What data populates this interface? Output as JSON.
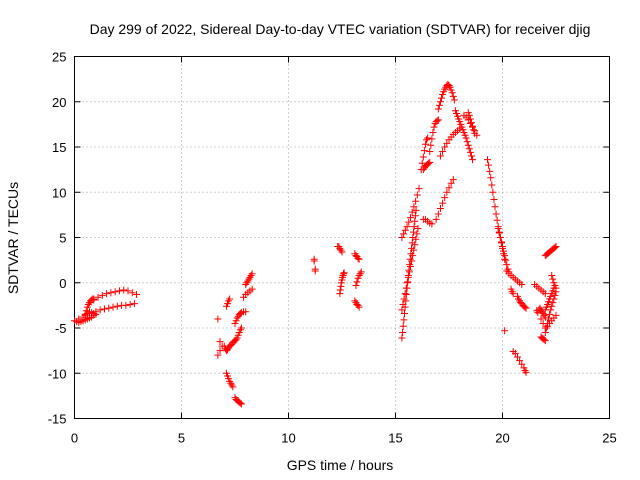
{
  "chart_data": {
    "type": "scatter",
    "title": "Day 299 of 2022, Sidereal Day-to-day VTEC variation (SDTVAR) for receiver djig",
    "xlabel": "GPS time / hours",
    "ylabel": "SDTVAR / TECUs",
    "xlim": [
      0,
      25
    ],
    "ylim": [
      -15,
      25
    ],
    "xticks": [
      0,
      5,
      10,
      15,
      20,
      25
    ],
    "yticks": [
      -15,
      -10,
      -5,
      0,
      5,
      10,
      15,
      20,
      25
    ],
    "xtick_labels": [
      "0",
      "5",
      "10",
      "15",
      "20",
      "25"
    ],
    "ytick_labels": [
      "-15",
      "-10",
      "-5",
      "0",
      "5",
      "10",
      "15",
      "20",
      "25"
    ],
    "grid": true,
    "marker": "plus",
    "color": "#ff0000",
    "segments": [
      {
        "x": [
          0.0,
          0.2,
          0.4,
          0.5,
          0.6,
          0.7,
          0.8,
          0.9
        ],
        "y": [
          -4.2,
          -4.0,
          -3.8,
          -3.6,
          -3.4,
          -3.2,
          -3.3,
          -3.4
        ]
      },
      {
        "x": [
          0.1,
          0.2,
          0.3,
          0.4,
          0.5,
          0.6,
          0.7,
          0.8,
          0.9,
          1.0
        ],
        "y": [
          -4.3,
          -4.4,
          -4.3,
          -4.2,
          -4.1,
          -4.0,
          -3.9,
          -3.8,
          -3.6,
          -3.5
        ]
      },
      {
        "x": [
          0.5,
          0.55,
          0.6,
          0.65,
          0.7,
          0.75,
          0.8,
          0.85,
          0.9
        ],
        "y": [
          -3.5,
          -3.1,
          -2.7,
          -2.4,
          -2.2,
          -2.0,
          -1.9,
          -1.8,
          -1.8
        ]
      },
      {
        "x": [
          1.0,
          1.2,
          1.4,
          1.6,
          1.8,
          2.0,
          2.2,
          2.4,
          2.6,
          2.8
        ],
        "y": [
          -3.2,
          -3.0,
          -2.9,
          -2.8,
          -2.7,
          -2.6,
          -2.5,
          -2.5,
          -2.4,
          -2.3
        ]
      },
      {
        "x": [
          0.9,
          1.1,
          1.3,
          1.5,
          1.7,
          1.9,
          2.1,
          2.3,
          2.5,
          2.7,
          2.9
        ],
        "y": [
          -1.9,
          -1.6,
          -1.4,
          -1.2,
          -1.1,
          -1.0,
          -0.9,
          -0.8,
          -0.9,
          -1.1,
          -1.3
        ]
      },
      {
        "x": [
          6.7,
          6.8
        ],
        "y": [
          -4.0,
          -6.5
        ]
      },
      {
        "x": [
          6.7,
          6.8,
          6.9
        ],
        "y": [
          -8.0,
          -7.5,
          -7.0
        ]
      },
      {
        "x": [
          7.0,
          7.05,
          7.1,
          7.15,
          7.2,
          7.25,
          7.3,
          7.35,
          7.4,
          7.45,
          7.5,
          7.55,
          7.6,
          7.65,
          7.7,
          7.75,
          7.8
        ],
        "y": [
          -7.0,
          -7.3,
          -7.5,
          -7.4,
          -7.2,
          -7.0,
          -6.9,
          -6.8,
          -6.6,
          -6.5,
          -6.4,
          -6.3,
          -6.1,
          -5.8,
          -5.5,
          -5.2,
          -5.0
        ]
      },
      {
        "x": [
          7.1,
          7.15,
          7.2,
          7.25,
          7.3,
          7.35,
          7.4
        ],
        "y": [
          -10.0,
          -10.3,
          -10.6,
          -10.9,
          -11.1,
          -11.3,
          -11.5
        ]
      },
      {
        "x": [
          7.5,
          7.55,
          7.6,
          7.65,
          7.7,
          7.75,
          7.8
        ],
        "y": [
          -12.7,
          -12.9,
          -13.0,
          -13.1,
          -13.2,
          -13.3,
          -13.4
        ]
      },
      {
        "x": [
          7.1,
          7.15,
          7.2,
          7.25
        ],
        "y": [
          -2.6,
          -2.3,
          -2.0,
          -1.8
        ]
      },
      {
        "x": [
          7.5,
          7.55,
          7.6,
          7.65,
          7.7,
          7.75,
          7.8,
          7.9,
          8.0
        ],
        "y": [
          -4.5,
          -4.2,
          -3.9,
          -3.7,
          -3.5,
          -3.4,
          -3.3,
          -3.2,
          -3.2
        ]
      },
      {
        "x": [
          7.9,
          8.0,
          8.1,
          8.2,
          8.3
        ],
        "y": [
          -1.6,
          -1.3,
          -1.1,
          -0.9,
          -0.7
        ]
      },
      {
        "x": [
          8.0,
          8.05,
          8.1,
          8.15,
          8.2,
          8.25,
          8.3
        ],
        "y": [
          -0.2,
          0.0,
          0.2,
          0.4,
          0.6,
          0.8,
          1.0
        ]
      },
      {
        "x": [
          11.2,
          11.2,
          11.25,
          11.25
        ],
        "y": [
          2.4,
          2.6,
          1.3,
          1.5
        ]
      },
      {
        "x": [
          12.3,
          12.35,
          12.4,
          12.45,
          12.5
        ],
        "y": [
          4.0,
          4.0,
          3.8,
          3.6,
          3.4
        ]
      },
      {
        "x": [
          12.4,
          12.42,
          12.45,
          12.47,
          12.5,
          12.52,
          12.55,
          12.57,
          12.6
        ],
        "y": [
          -1.2,
          -0.8,
          -0.4,
          0.0,
          0.3,
          0.6,
          0.8,
          1.0,
          1.1
        ]
      },
      {
        "x": [
          13.1,
          13.15,
          13.2,
          13.25,
          13.3
        ],
        "y": [
          3.2,
          3.0,
          2.9,
          2.7,
          2.6
        ]
      },
      {
        "x": [
          13.15,
          13.2,
          13.25,
          13.3,
          13.35,
          13.4
        ],
        "y": [
          -0.3,
          0.1,
          0.5,
          0.8,
          1.0,
          1.2
        ]
      },
      {
        "x": [
          13.1,
          13.15,
          13.2,
          13.25,
          13.3
        ],
        "y": [
          -2.0,
          -2.2,
          -2.4,
          -2.5,
          -2.7
        ]
      },
      {
        "x": [
          15.3,
          15.33,
          15.36,
          15.39,
          15.42,
          15.45,
          15.48,
          15.51,
          15.54,
          15.57,
          15.6,
          15.63,
          15.66,
          15.69,
          15.72,
          15.75,
          15.78,
          15.81,
          15.84,
          15.87,
          15.9,
          15.93,
          15.96
        ],
        "y": [
          -6.1,
          -5.5,
          -4.8,
          -4.1,
          -3.4,
          -2.7,
          -2.0,
          -1.3,
          -0.6,
          0.1,
          0.8,
          1.4,
          2.0,
          2.6,
          3.2,
          3.8,
          4.4,
          5.0,
          5.6,
          6.2,
          6.8,
          7.4,
          8.0
        ]
      },
      {
        "x": [
          15.3,
          15.35,
          15.4,
          15.45,
          15.5,
          15.55,
          15.6,
          15.65,
          15.7,
          15.75,
          15.8,
          15.85,
          15.9,
          15.95,
          16.0,
          16.05
        ],
        "y": [
          -3.0,
          -2.4,
          -1.8,
          -1.2,
          -0.6,
          0.0,
          0.6,
          1.2,
          1.8,
          2.4,
          3.0,
          3.6,
          4.2,
          4.8,
          5.4,
          6.0
        ]
      },
      {
        "x": [
          15.3,
          15.38,
          15.46,
          15.54,
          15.62,
          15.7,
          15.78,
          15.86,
          15.94,
          16.02,
          16.1
        ],
        "y": [
          5.0,
          5.4,
          5.8,
          6.2,
          6.7,
          7.2,
          7.8,
          8.4,
          9.0,
          9.7,
          10.4
        ]
      },
      {
        "x": [
          16.2,
          16.25,
          16.3,
          16.35,
          16.4,
          16.45,
          16.5
        ],
        "y": [
          12.5,
          13.2,
          13.9,
          14.6,
          15.3,
          15.8,
          16.0
        ]
      },
      {
        "x": [
          16.3,
          16.35,
          16.4,
          16.45,
          16.5,
          16.55,
          16.6
        ],
        "y": [
          12.5,
          12.7,
          12.9,
          13.0,
          13.1,
          13.2,
          13.3
        ]
      },
      {
        "x": [
          16.6,
          16.65,
          16.7,
          16.75,
          16.8,
          16.85,
          16.9,
          16.95,
          17.0
        ],
        "y": [
          14.5,
          15.2,
          15.9,
          16.6,
          17.2,
          17.6,
          17.8,
          17.9,
          18.0
        ]
      },
      {
        "x": [
          16.3,
          16.4,
          16.5,
          16.6,
          16.7
        ],
        "y": [
          7.0,
          7.0,
          6.8,
          6.6,
          6.5
        ]
      },
      {
        "x": [
          16.9,
          17.0,
          17.1,
          17.2,
          17.3,
          17.4,
          17.5,
          17.6,
          17.7
        ],
        "y": [
          7.0,
          7.6,
          8.2,
          8.8,
          9.4,
          10.0,
          10.5,
          11.0,
          11.4
        ]
      },
      {
        "x": [
          17.0,
          17.05,
          17.1,
          17.15,
          17.2,
          17.25,
          17.3,
          17.35,
          17.4,
          17.45,
          17.5,
          17.55,
          17.6,
          17.65,
          17.7,
          17.75
        ],
        "y": [
          19.2,
          19.6,
          20.0,
          20.4,
          20.8,
          21.1,
          21.4,
          21.6,
          21.8,
          21.9,
          21.8,
          21.6,
          21.3,
          21.0,
          20.6,
          20.2
        ]
      },
      {
        "x": [
          17.1,
          17.2,
          17.3,
          17.4,
          17.5,
          17.6,
          17.7,
          17.8,
          17.9,
          18.0
        ],
        "y": [
          14.0,
          14.5,
          15.0,
          15.4,
          15.8,
          16.1,
          16.4,
          16.6,
          16.8,
          17.0
        ]
      },
      {
        "x": [
          17.8,
          17.85,
          17.9,
          17.95,
          18.0,
          18.05,
          18.1,
          18.15,
          18.2,
          18.25,
          18.3,
          18.35,
          18.4,
          18.45,
          18.5,
          18.55,
          18.6
        ],
        "y": [
          19.0,
          18.7,
          18.4,
          18.1,
          17.8,
          17.5,
          17.2,
          16.9,
          16.6,
          16.3,
          16.0,
          15.6,
          15.2,
          14.8,
          14.4,
          14.0,
          13.6
        ]
      },
      {
        "x": [
          18.2,
          18.3,
          18.4,
          18.5,
          18.6,
          18.7,
          18.8
        ],
        "y": [
          18.5,
          18.3,
          18.0,
          17.6,
          17.2,
          16.8,
          16.3
        ]
      },
      {
        "x": [
          18.4,
          18.45,
          18.5,
          18.55,
          18.6,
          18.65,
          18.7
        ],
        "y": [
          18.8,
          18.5,
          18.1,
          17.7,
          17.3,
          16.9,
          16.5
        ]
      },
      {
        "x": [
          19.3,
          19.35,
          19.4,
          19.45,
          19.5,
          19.55,
          19.6,
          19.65,
          19.7,
          19.75,
          19.8,
          19.85,
          19.9,
          19.95,
          20.0,
          20.05,
          20.1
        ],
        "y": [
          13.6,
          13.0,
          12.3,
          11.6,
          10.8,
          10.0,
          9.2,
          8.4,
          7.6,
          6.9,
          6.2,
          5.6,
          5.0,
          4.4,
          3.8,
          3.2,
          2.6
        ]
      },
      {
        "x": [
          19.8,
          19.85,
          19.9,
          19.95,
          20.0,
          20.05,
          20.1,
          20.15,
          20.2,
          20.25,
          20.3
        ],
        "y": [
          6.0,
          5.5,
          5.0,
          4.5,
          4.0,
          3.5,
          3.0,
          2.5,
          2.0,
          1.5,
          1.2
        ]
      },
      {
        "x": [
          20.2,
          20.3,
          20.4,
          20.5,
          20.6,
          20.7,
          20.8,
          20.9
        ],
        "y": [
          1.3,
          1.0,
          0.8,
          0.6,
          0.4,
          0.2,
          0.0,
          -0.2
        ]
      },
      {
        "x": [
          20.4,
          20.45,
          20.5
        ],
        "y": [
          -0.7,
          -1.0,
          -1.2
        ]
      },
      {
        "x": [
          20.7,
          20.75,
          20.8,
          20.85,
          20.9,
          20.95,
          21.0,
          21.05,
          21.1
        ],
        "y": [
          -1.5,
          -1.8,
          -2.0,
          -2.2,
          -2.3,
          -2.5,
          -2.6,
          -2.7,
          -2.8
        ]
      },
      {
        "x": [
          20.1
        ],
        "y": [
          -5.3
        ]
      },
      {
        "x": [
          20.5,
          20.6,
          20.7,
          20.8,
          20.9,
          21.0,
          21.05,
          21.1
        ],
        "y": [
          -7.6,
          -7.8,
          -8.2,
          -8.6,
          -9.0,
          -9.4,
          -9.7,
          -9.9
        ]
      },
      {
        "x": [
          21.5,
          21.6,
          21.7,
          21.8,
          21.9,
          22.0
        ],
        "y": [
          -0.2,
          -0.4,
          -0.6,
          -0.8,
          -1.0,
          -1.2
        ]
      },
      {
        "x": [
          21.6,
          21.65,
          21.7,
          21.75,
          21.8,
          21.85,
          21.9,
          21.95,
          22.0
        ],
        "y": [
          -3.1,
          -3.3,
          -3.0,
          -2.8,
          -3.0,
          -3.2,
          -3.4,
          -3.6,
          -3.8
        ]
      },
      {
        "x": [
          21.8,
          21.85,
          21.9,
          21.95,
          22.0
        ],
        "y": [
          -6.0,
          -6.1,
          -6.2,
          -6.3,
          -6.4
        ]
      },
      {
        "x": [
          21.8,
          21.9,
          22.0,
          22.1,
          22.2,
          22.3,
          22.4,
          22.5
        ],
        "y": [
          -4.0,
          -4.5,
          -5.0,
          -4.8,
          -4.5,
          -4.2,
          -3.9,
          -3.6
        ]
      },
      {
        "x": [
          22.0,
          22.05,
          22.1,
          22.15,
          22.2,
          22.25,
          22.3,
          22.35,
          22.4,
          22.45,
          22.5
        ],
        "y": [
          -5.5,
          -5.0,
          -4.5,
          -4.0,
          -3.5,
          -3.0,
          -2.6,
          -2.2,
          -1.8,
          -1.4,
          -1.0
        ]
      },
      {
        "x": [
          22.0,
          22.05,
          22.1,
          22.15,
          22.2,
          22.25,
          22.3,
          22.35,
          22.4
        ],
        "y": [
          -3.0,
          -2.7,
          -2.4,
          -2.1,
          -1.8,
          -1.5,
          -1.2,
          -0.9,
          -0.6
        ]
      },
      {
        "x": [
          22.3,
          22.35,
          22.4,
          22.45,
          22.5
        ],
        "y": [
          0.8,
          0.4,
          0.0,
          -0.3,
          -0.6
        ]
      },
      {
        "x": [
          22.0,
          22.05,
          22.1,
          22.15,
          22.2,
          22.25,
          22.3,
          22.35,
          22.4,
          22.45,
          22.5
        ],
        "y": [
          3.0,
          3.1,
          3.2,
          3.3,
          3.4,
          3.5,
          3.6,
          3.7,
          3.8,
          3.9,
          4.0
        ]
      }
    ]
  }
}
